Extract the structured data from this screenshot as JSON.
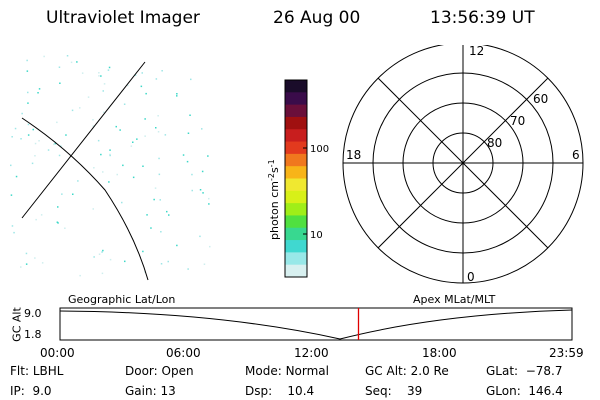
{
  "header": {
    "title": "Ultraviolet Imager",
    "date": "26 Aug 00",
    "time": "13:56:39 UT"
  },
  "colorbar": {
    "label_main": "photon cm",
    "label_exp1": "-2",
    "label_mid": "s",
    "label_exp2": "-1",
    "ticks": [
      "100",
      "10"
    ],
    "colors": [
      "#1a0c2a",
      "#3a0c4a",
      "#6a0f3a",
      "#a01010",
      "#c81e1e",
      "#e23a1e",
      "#f0781e",
      "#f8b418",
      "#f0e830",
      "#d8f018",
      "#a0ee18",
      "#50e040",
      "#38d890",
      "#40d8d0",
      "#98e8e8",
      "#d8f0f0"
    ]
  },
  "polar": {
    "labels": {
      "top": "12",
      "bottom": "0",
      "left": "18",
      "right": "6"
    },
    "lat_labels": [
      "60",
      "70",
      "80"
    ]
  },
  "timeline": {
    "left_title": "Geographic Lat/Lon",
    "right_title": "Apex MLat/MLT",
    "axis_title": "GC Alt",
    "y_ticks": [
      "9.0",
      "1.8"
    ],
    "x_ticks": [
      "00:00",
      "06:00",
      "12:00",
      "18:00",
      "23:59"
    ],
    "current_time_fraction": 0.583,
    "marker_color": "#e00000"
  },
  "status": {
    "flt": {
      "label": "Flt:",
      "value": "LBHL"
    },
    "ip": {
      "label": "IP:",
      "value": "9.0"
    },
    "door": {
      "label": "Door:",
      "value": "Open"
    },
    "gain": {
      "label": "Gain:",
      "value": "13"
    },
    "mode": {
      "label": "Mode:",
      "value": "Normal"
    },
    "dsp": {
      "label": "Dsp:",
      "value": "10.4"
    },
    "gcalt": {
      "label": "GC Alt:",
      "value": "2.0 Re"
    },
    "seq": {
      "label": "Seq:",
      "value": "39"
    },
    "glat": {
      "label": "GLat:",
      "value": "−78.7"
    },
    "glon": {
      "label": "GLon:",
      "value": "146.4"
    }
  }
}
